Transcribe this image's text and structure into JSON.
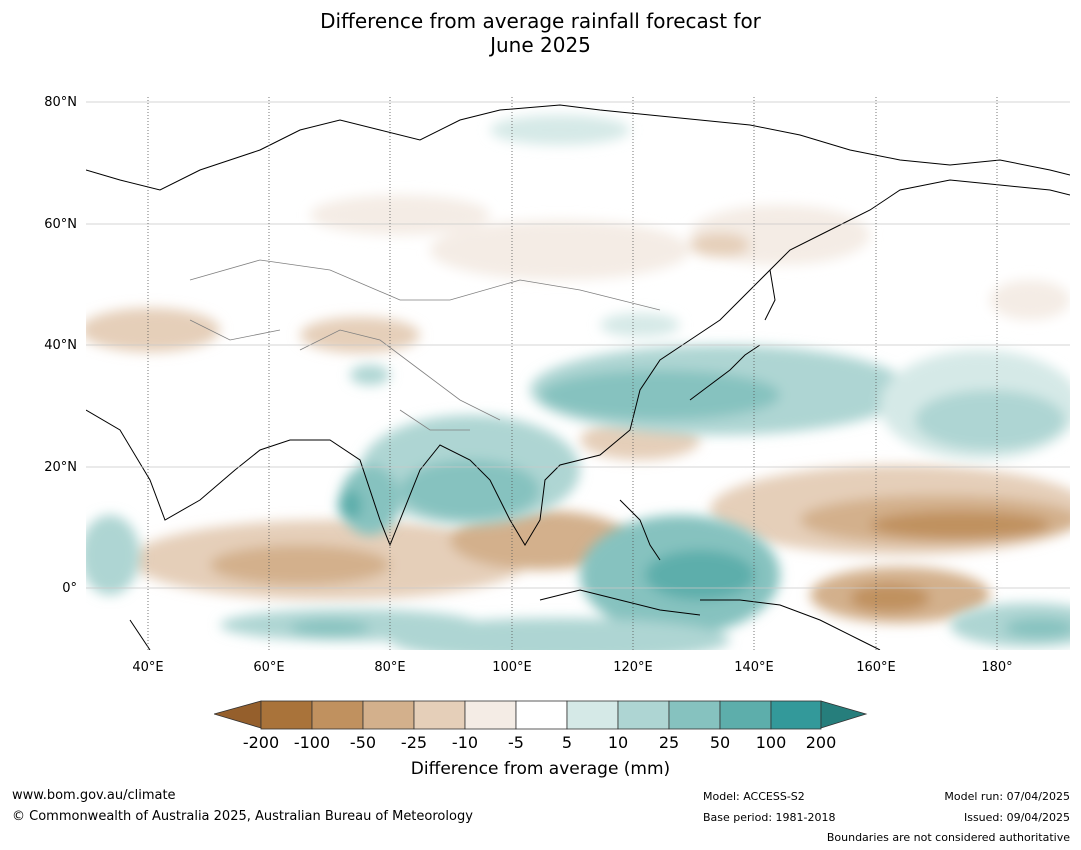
{
  "title": {
    "line1": "Difference from average rainfall forecast for",
    "line2": "June 2025"
  },
  "map": {
    "latitude_labels": [
      "80°N",
      "60°N",
      "40°N",
      "20°N",
      "0°"
    ],
    "longitude_labels": [
      "40°E",
      "60°E",
      "80°E",
      "100°E",
      "120°E",
      "140°E",
      "160°E",
      "180°"
    ],
    "lon_range": [
      30,
      192
    ],
    "lat_range": [
      -10,
      81
    ]
  },
  "legend": {
    "ticks": [
      "-200",
      "-100",
      "-50",
      "-25",
      "-10",
      "-5",
      "5",
      "10",
      "25",
      "50",
      "100",
      "200"
    ],
    "colors": [
      "#a9733a",
      "#c0915f",
      "#d3b08c",
      "#e5cfb9",
      "#f4ece5",
      "#ffffff",
      "#d5e9e7",
      "#aed5d3",
      "#86c2bf",
      "#5daeab",
      "#33999a"
    ],
    "under_color": "#955f2c",
    "over_color": "#267e7c",
    "label": "Difference from average (mm)"
  },
  "footer": {
    "website": "www.bom.gov.au/climate",
    "copyright": "© Commonwealth of Australia 2025, Australian Bureau of Meteorology",
    "model": "Model: ACCESS-S2",
    "base_period": "Base period: 1981-2018",
    "model_run": "Model run: 07/04/2025",
    "issued": "Issued: 09/04/2025",
    "disclaimer": "Boundaries are not considered authoritative"
  }
}
